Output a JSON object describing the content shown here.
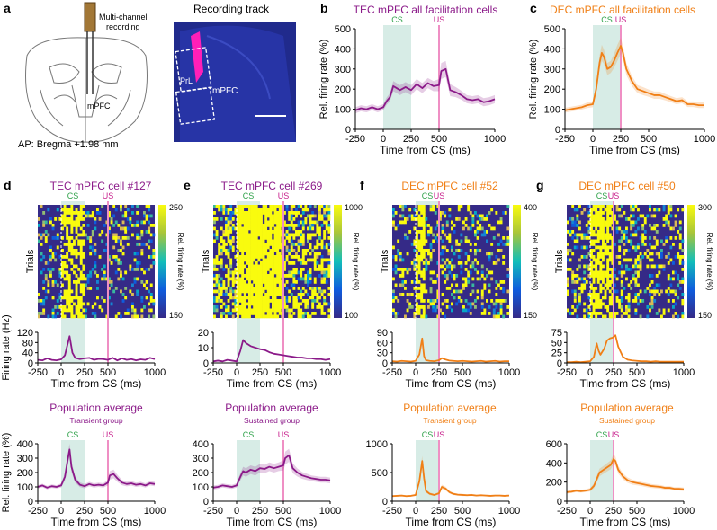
{
  "colors": {
    "tec": "#8b1a89",
    "dec": "#f07f16",
    "cs_shade": "#d7ece6",
    "us_line": "#ef8fc4",
    "cs_text": "#2fa24a",
    "us_text": "#c8208c"
  },
  "panel_a": {
    "letter": "a",
    "schematic_label": "Multi-channel\nrecording",
    "region_label": "mPFC",
    "ap_label": "AP: Bregma +1.98 mm",
    "track_title": "Recording track",
    "track_region": "mPFC",
    "track_sub": "PrL"
  },
  "chart_data": [
    {
      "id": "b",
      "type": "line",
      "letter": "b",
      "title": "TEC mPFC all facilitation cells",
      "color": "tec",
      "xlabel": "Time from CS (ms)",
      "ylabel": "Rel. firing rate (%)",
      "xlim": [
        -250,
        1000
      ],
      "xticks": [
        -250,
        0,
        250,
        500,
        1000
      ],
      "ylim": [
        0,
        500
      ],
      "yticks": [
        0,
        100,
        200,
        300,
        400,
        500
      ],
      "cs": [
        0,
        250
      ],
      "us": 500,
      "cs_label": "CS",
      "us_label": "US",
      "x": [
        -250,
        -200,
        -150,
        -100,
        -50,
        0,
        30,
        60,
        90,
        120,
        150,
        200,
        250,
        300,
        350,
        400,
        450,
        500,
        520,
        560,
        600,
        650,
        700,
        750,
        800,
        850,
        900,
        950,
        1000
      ],
      "y": [
        95,
        105,
        100,
        110,
        100,
        110,
        140,
        160,
        215,
        205,
        195,
        210,
        195,
        225,
        205,
        230,
        215,
        220,
        290,
        300,
        195,
        185,
        170,
        150,
        145,
        150,
        135,
        140,
        150
      ],
      "err": [
        15,
        15,
        15,
        15,
        15,
        15,
        18,
        20,
        25,
        25,
        25,
        25,
        25,
        25,
        25,
        25,
        25,
        30,
        40,
        40,
        30,
        25,
        22,
        20,
        20,
        20,
        20,
        20,
        20
      ]
    },
    {
      "id": "c",
      "type": "line",
      "letter": "c",
      "title": "DEC mPFC all facilitation cells",
      "color": "dec",
      "xlabel": "Time from CS (ms)",
      "ylabel": "Rel. firing rate (%)",
      "xlim": [
        -250,
        1000
      ],
      "xticks": [
        -250,
        0,
        250,
        500,
        1000
      ],
      "ylim": [
        0,
        500
      ],
      "yticks": [
        0,
        100,
        200,
        300,
        400,
        500
      ],
      "cs": [
        0,
        250
      ],
      "us": 250,
      "cs_label": "CS",
      "us_label": "US",
      "x": [
        -250,
        -200,
        -150,
        -100,
        -50,
        0,
        30,
        60,
        80,
        100,
        130,
        160,
        190,
        220,
        250,
        270,
        300,
        350,
        400,
        450,
        500,
        550,
        600,
        650,
        700,
        750,
        800,
        850,
        900,
        950,
        1000
      ],
      "y": [
        95,
        100,
        105,
        110,
        120,
        125,
        200,
        330,
        380,
        360,
        300,
        310,
        340,
        380,
        415,
        380,
        300,
        240,
        200,
        190,
        180,
        170,
        170,
        160,
        150,
        140,
        145,
        125,
        125,
        120,
        120
      ],
      "err": [
        12,
        12,
        12,
        12,
        14,
        15,
        25,
        35,
        40,
        35,
        30,
        30,
        35,
        40,
        40,
        35,
        30,
        25,
        20,
        20,
        18,
        18,
        18,
        16,
        15,
        15,
        15,
        14,
        14,
        14,
        14
      ]
    },
    {
      "id": "d_fr",
      "type": "line",
      "letter": "d",
      "title": "TEC mPFC cell #127",
      "color": "tec",
      "xlabel": "Time from CS (ms)",
      "ylabel": "Firing rate (Hz)",
      "xlim": [
        -250,
        1000
      ],
      "xticks": [
        -250,
        0,
        250,
        500,
        1000
      ],
      "ylim": [
        0,
        120
      ],
      "yticks": [
        0,
        40,
        80,
        120
      ],
      "cs": [
        0,
        250
      ],
      "us": 500,
      "cs_label": "CS",
      "us_label": "US",
      "heatmap_colorbar": [
        150,
        250
      ],
      "heatmap_label": "Rel. firing rate (%)",
      "trials_label": "Trials",
      "x": [
        -250,
        -200,
        -150,
        -100,
        -50,
        0,
        40,
        70,
        90,
        120,
        150,
        200,
        250,
        300,
        350,
        400,
        450,
        500,
        550,
        600,
        650,
        700,
        750,
        800,
        850,
        900,
        950,
        1000
      ],
      "y": [
        12,
        10,
        18,
        12,
        10,
        14,
        30,
        75,
        105,
        40,
        20,
        15,
        18,
        20,
        12,
        16,
        15,
        12,
        20,
        10,
        18,
        12,
        15,
        10,
        14,
        12,
        20,
        15
      ]
    },
    {
      "id": "e_fr",
      "type": "line",
      "letter": "e",
      "title": "TEC mPFC cell #269",
      "color": "tec",
      "xlabel": "Time from CS (ms)",
      "ylabel": "",
      "xlim": [
        -250,
        1000
      ],
      "xticks": [
        -250,
        0,
        250,
        500,
        1000
      ],
      "ylim": [
        0,
        20
      ],
      "yticks": [
        0,
        10,
        20
      ],
      "cs": [
        0,
        250
      ],
      "us": 500,
      "cs_label": "CS",
      "us_label": "US",
      "heatmap_colorbar": [
        100,
        1000
      ],
      "heatmap_label": "Rel. firing rate (%)",
      "trials_label": "Trials",
      "x": [
        -250,
        -200,
        -150,
        -100,
        -50,
        0,
        40,
        70,
        100,
        150,
        200,
        250,
        300,
        350,
        400,
        450,
        500,
        550,
        600,
        650,
        700,
        750,
        800,
        850,
        900,
        950,
        1000
      ],
      "y": [
        1,
        1.5,
        1,
        2,
        1.5,
        1,
        8,
        15,
        13,
        11,
        10,
        9,
        8.5,
        7,
        6,
        5.5,
        5,
        4.5,
        4,
        3.5,
        3.5,
        3,
        3,
        2.5,
        2.5,
        2,
        2.5
      ]
    },
    {
      "id": "f_fr",
      "type": "line",
      "letter": "f",
      "title": "DEC mPFC cell #52",
      "color": "dec",
      "xlabel": "Time from CS (ms)",
      "ylabel": "",
      "xlim": [
        -250,
        1000
      ],
      "xticks": [
        -250,
        0,
        250,
        500,
        1000
      ],
      "ylim": [
        0,
        90
      ],
      "yticks": [
        0,
        30,
        60,
        90
      ],
      "cs": [
        0,
        250
      ],
      "us": 250,
      "cs_label": "CS",
      "us_label": "US",
      "heatmap_colorbar": [
        150,
        400
      ],
      "heatmap_label": "Rel. firing rate (%)",
      "trials_label": "Trials",
      "x": [
        -250,
        -200,
        -150,
        -100,
        -50,
        0,
        40,
        70,
        90,
        110,
        150,
        200,
        250,
        280,
        320,
        360,
        400,
        450,
        500,
        550,
        600,
        650,
        700,
        750,
        800,
        850,
        900,
        950,
        1000
      ],
      "y": [
        5,
        4,
        6,
        5,
        4,
        6,
        25,
        72,
        20,
        8,
        6,
        5,
        8,
        14,
        10,
        7,
        6,
        5,
        6,
        5,
        4,
        5,
        6,
        4,
        5,
        6,
        4,
        5,
        5
      ]
    },
    {
      "id": "g_fr",
      "type": "line",
      "letter": "g",
      "title": "DEC mPFC cell #50",
      "color": "dec",
      "xlabel": "Time from CS (ms)",
      "ylabel": "",
      "xlim": [
        -250,
        1000
      ],
      "xticks": [
        -250,
        0,
        250,
        500,
        1000
      ],
      "ylim": [
        0,
        75
      ],
      "yticks": [
        0,
        25,
        50,
        75
      ],
      "cs": [
        0,
        250
      ],
      "us": 250,
      "cs_label": "CS",
      "us_label": "US",
      "heatmap_colorbar": [
        150,
        300
      ],
      "heatmap_label": "Rel. firing rate (%)",
      "trials_label": "Trials",
      "x": [
        -250,
        -200,
        -150,
        -100,
        -50,
        0,
        40,
        70,
        90,
        110,
        150,
        180,
        210,
        240,
        270,
        300,
        350,
        400,
        450,
        500,
        550,
        600,
        650,
        700,
        750,
        800,
        850,
        900,
        950,
        1000
      ],
      "y": [
        2,
        2,
        3,
        2,
        3,
        4,
        15,
        48,
        30,
        20,
        35,
        55,
        60,
        62,
        68,
        40,
        15,
        8,
        6,
        5,
        4,
        4,
        3,
        4,
        3,
        3,
        3,
        3,
        3,
        3
      ]
    },
    {
      "id": "d_pop",
      "type": "line",
      "title": "Population average",
      "subtitle": "Transient group",
      "color": "tec",
      "xlabel": "Time from CS (ms)",
      "ylabel": "Rel. firing rate (%)",
      "xlim": [
        -250,
        1000
      ],
      "xticks": [
        -250,
        0,
        250,
        500,
        1000
      ],
      "ylim": [
        0,
        400
      ],
      "yticks": [
        0,
        100,
        200,
        300,
        400
      ],
      "cs": [
        0,
        250
      ],
      "us": 500,
      "cs_label": "CS",
      "us_label": "US",
      "x": [
        -250,
        -200,
        -150,
        -100,
        -50,
        0,
        40,
        70,
        90,
        110,
        150,
        200,
        250,
        300,
        350,
        400,
        450,
        500,
        520,
        560,
        600,
        650,
        700,
        750,
        800,
        850,
        900,
        950,
        1000
      ],
      "y": [
        100,
        110,
        95,
        105,
        100,
        110,
        170,
        290,
        360,
        240,
        150,
        115,
        105,
        120,
        110,
        115,
        110,
        130,
        180,
        190,
        160,
        130,
        120,
        125,
        115,
        120,
        110,
        125,
        120
      ],
      "err": [
        12,
        12,
        12,
        12,
        12,
        14,
        25,
        40,
        45,
        35,
        22,
        16,
        15,
        15,
        15,
        15,
        15,
        20,
        30,
        30,
        25,
        18,
        16,
        16,
        15,
        15,
        15,
        15,
        15
      ]
    },
    {
      "id": "e_pop",
      "type": "line",
      "title": "Population average",
      "subtitle": "Sustained group",
      "color": "tec",
      "xlabel": "Time from CS (ms)",
      "ylabel": "",
      "xlim": [
        -250,
        1000
      ],
      "xticks": [
        -250,
        0,
        250,
        500,
        1000
      ],
      "ylim": [
        0,
        400
      ],
      "yticks": [
        0,
        100,
        200,
        300,
        400
      ],
      "cs": [
        0,
        250
      ],
      "us": 500,
      "cs_label": "CS",
      "us_label": "US",
      "x": [
        -250,
        -200,
        -150,
        -100,
        -50,
        0,
        40,
        70,
        100,
        150,
        200,
        250,
        300,
        350,
        400,
        450,
        500,
        520,
        560,
        600,
        650,
        700,
        750,
        800,
        850,
        900,
        950,
        1000
      ],
      "y": [
        95,
        100,
        110,
        105,
        100,
        110,
        170,
        210,
        200,
        220,
        210,
        230,
        225,
        240,
        230,
        240,
        250,
        300,
        320,
        230,
        200,
        180,
        170,
        160,
        155,
        150,
        150,
        145
      ],
      "err": [
        14,
        14,
        14,
        14,
        14,
        15,
        25,
        30,
        30,
        30,
        30,
        30,
        30,
        30,
        30,
        30,
        35,
        45,
        45,
        35,
        28,
        24,
        22,
        20,
        20,
        20,
        20,
        20
      ]
    },
    {
      "id": "f_pop",
      "type": "line",
      "title": "Population average",
      "subtitle": "Transient group",
      "color": "dec",
      "xlabel": "Time from CS (ms)",
      "ylabel": "",
      "xlim": [
        -250,
        1000
      ],
      "xticks": [
        -250,
        0,
        250,
        500,
        1000
      ],
      "ylim": [
        0,
        1000
      ],
      "yticks": [
        0,
        500,
        1000
      ],
      "cs": [
        0,
        250
      ],
      "us": 250,
      "cs_label": "CS",
      "us_label": "US",
      "x": [
        -250,
        -200,
        -150,
        -100,
        -50,
        0,
        40,
        70,
        90,
        110,
        150,
        200,
        250,
        280,
        320,
        360,
        400,
        450,
        500,
        550,
        600,
        650,
        700,
        750,
        800,
        850,
        900,
        950,
        1000
      ],
      "y": [
        90,
        95,
        100,
        90,
        95,
        110,
        350,
        700,
        400,
        180,
        130,
        110,
        140,
        250,
        220,
        160,
        130,
        115,
        110,
        105,
        110,
        100,
        105,
        100,
        95,
        100,
        100,
        95,
        100
      ],
      "err": [
        15,
        15,
        15,
        15,
        15,
        18,
        50,
        90,
        60,
        30,
        22,
        18,
        25,
        40,
        35,
        25,
        20,
        18,
        18,
        16,
        16,
        15,
        15,
        15,
        15,
        15,
        15,
        15,
        15
      ]
    },
    {
      "id": "g_pop",
      "type": "line",
      "title": "Population average",
      "subtitle": "Sustained group",
      "color": "dec",
      "xlabel": "Time from CS (ms)",
      "ylabel": "",
      "xlim": [
        -250,
        1000
      ],
      "xticks": [
        -250,
        0,
        250,
        500,
        1000
      ],
      "ylim": [
        0,
        600
      ],
      "yticks": [
        0,
        200,
        400,
        600
      ],
      "cs": [
        0,
        250
      ],
      "us": 250,
      "cs_label": "CS",
      "us_label": "US",
      "x": [
        -250,
        -200,
        -150,
        -100,
        -50,
        0,
        40,
        70,
        100,
        130,
        160,
        190,
        220,
        250,
        270,
        300,
        350,
        400,
        450,
        500,
        550,
        600,
        650,
        700,
        750,
        800,
        850,
        900,
        950,
        1000
      ],
      "y": [
        95,
        100,
        110,
        105,
        110,
        120,
        160,
        230,
        300,
        320,
        340,
        360,
        380,
        440,
        420,
        330,
        260,
        220,
        200,
        190,
        180,
        170,
        160,
        155,
        150,
        140,
        140,
        130,
        130,
        125
      ],
      "err": [
        15,
        15,
        15,
        15,
        15,
        18,
        25,
        35,
        40,
        40,
        42,
        44,
        46,
        50,
        48,
        40,
        32,
        28,
        26,
        24,
        22,
        22,
        20,
        20,
        20,
        18,
        18,
        18,
        18,
        18
      ]
    }
  ]
}
